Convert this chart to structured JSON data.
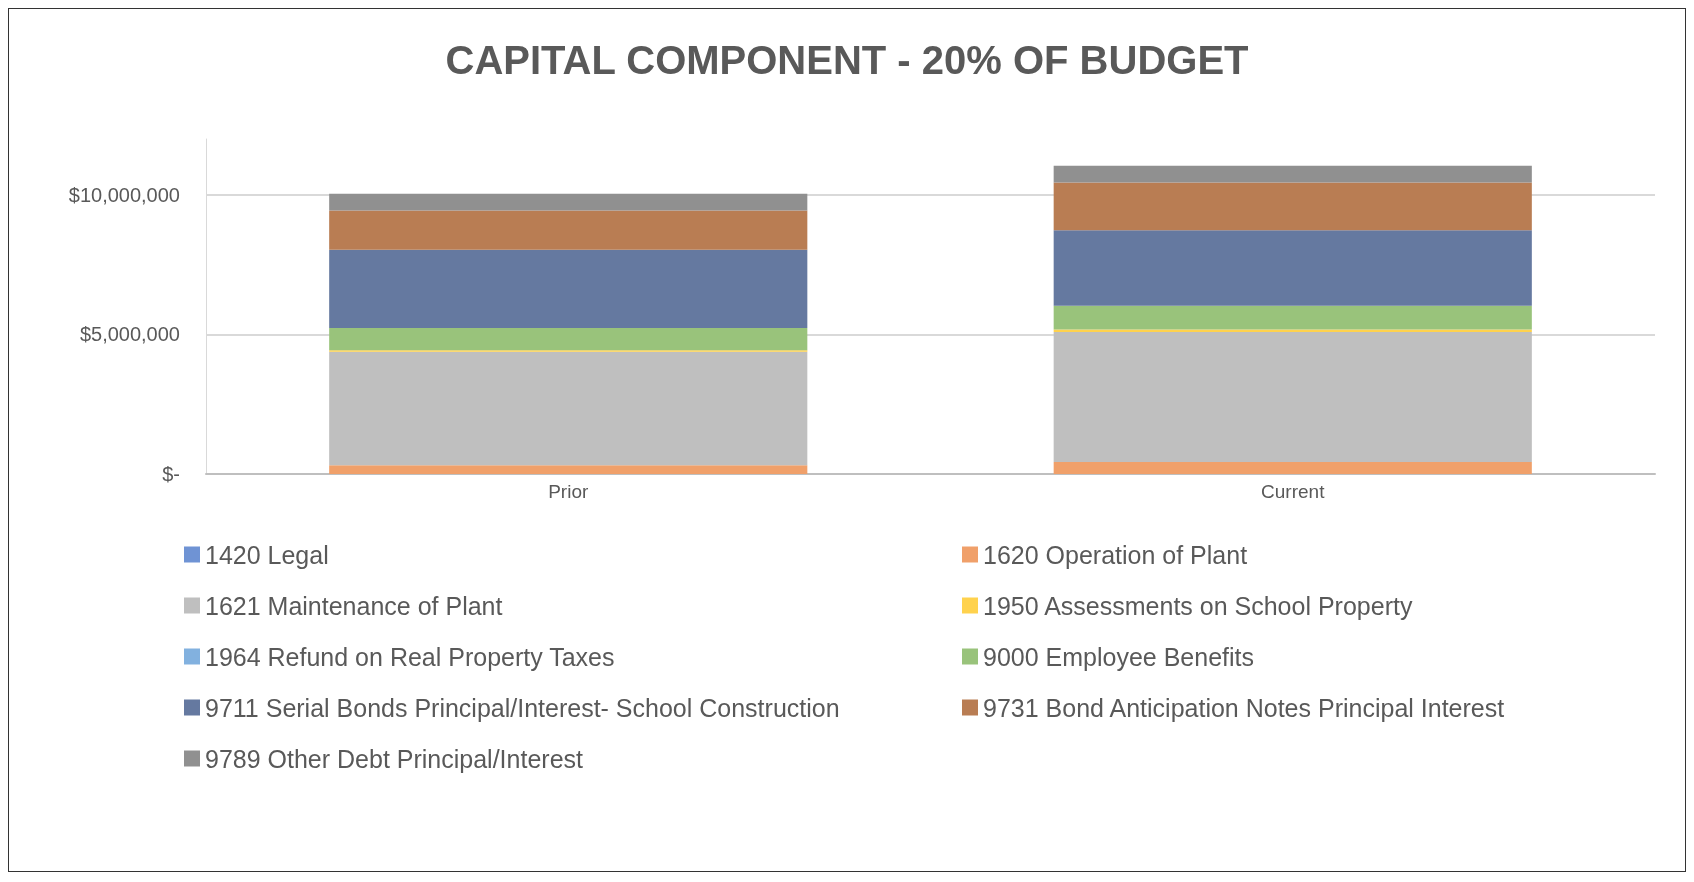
{
  "chart_data": {
    "type": "bar",
    "title": "CAPITAL COMPONENT - 20% OF BUDGET",
    "categories": [
      "Prior",
      "Current"
    ],
    "stacked": true,
    "ylim": [
      0,
      12000000
    ],
    "yticks": [
      {
        "value": 0,
        "label": "$-"
      },
      {
        "value": 5000000,
        "label": "$5,000,000"
      },
      {
        "value": 10000000,
        "label": "$10,000,000"
      }
    ],
    "grid": "y",
    "legend": "bottom",
    "series": [
      {
        "name": "1420 Legal",
        "color": "#6f93d4",
        "values": [
          0,
          0
        ]
      },
      {
        "name": "1620 Operation of Plant",
        "color": "#f0a06a",
        "values": [
          310000,
          430000
        ]
      },
      {
        "name": "1621 Maintenance of Plant",
        "color": "#bfbfbf",
        "values": [
          4070000,
          4660000
        ]
      },
      {
        "name": "1950 Assessments on School Property",
        "color": "#ffd24d",
        "values": [
          50000,
          90000
        ]
      },
      {
        "name": "1964 Refund on Real Property Taxes",
        "color": "#82b1df",
        "values": [
          0,
          0
        ]
      },
      {
        "name": "9000 Employee Benefits",
        "color": "#99c37b",
        "values": [
          800000,
          850000
        ]
      },
      {
        "name": "9711 Serial Bonds Principal/Interest- School Construction",
        "color": "#6579a0",
        "values": [
          2800000,
          2700000
        ]
      },
      {
        "name": "9731 Bond Anticipation Notes Principal Interest",
        "color": "#b97d53",
        "values": [
          1410000,
          1710000
        ]
      },
      {
        "name": "9789 Other Debt Principal/Interest",
        "color": "#909090",
        "values": [
          600000,
          600000
        ]
      }
    ]
  }
}
